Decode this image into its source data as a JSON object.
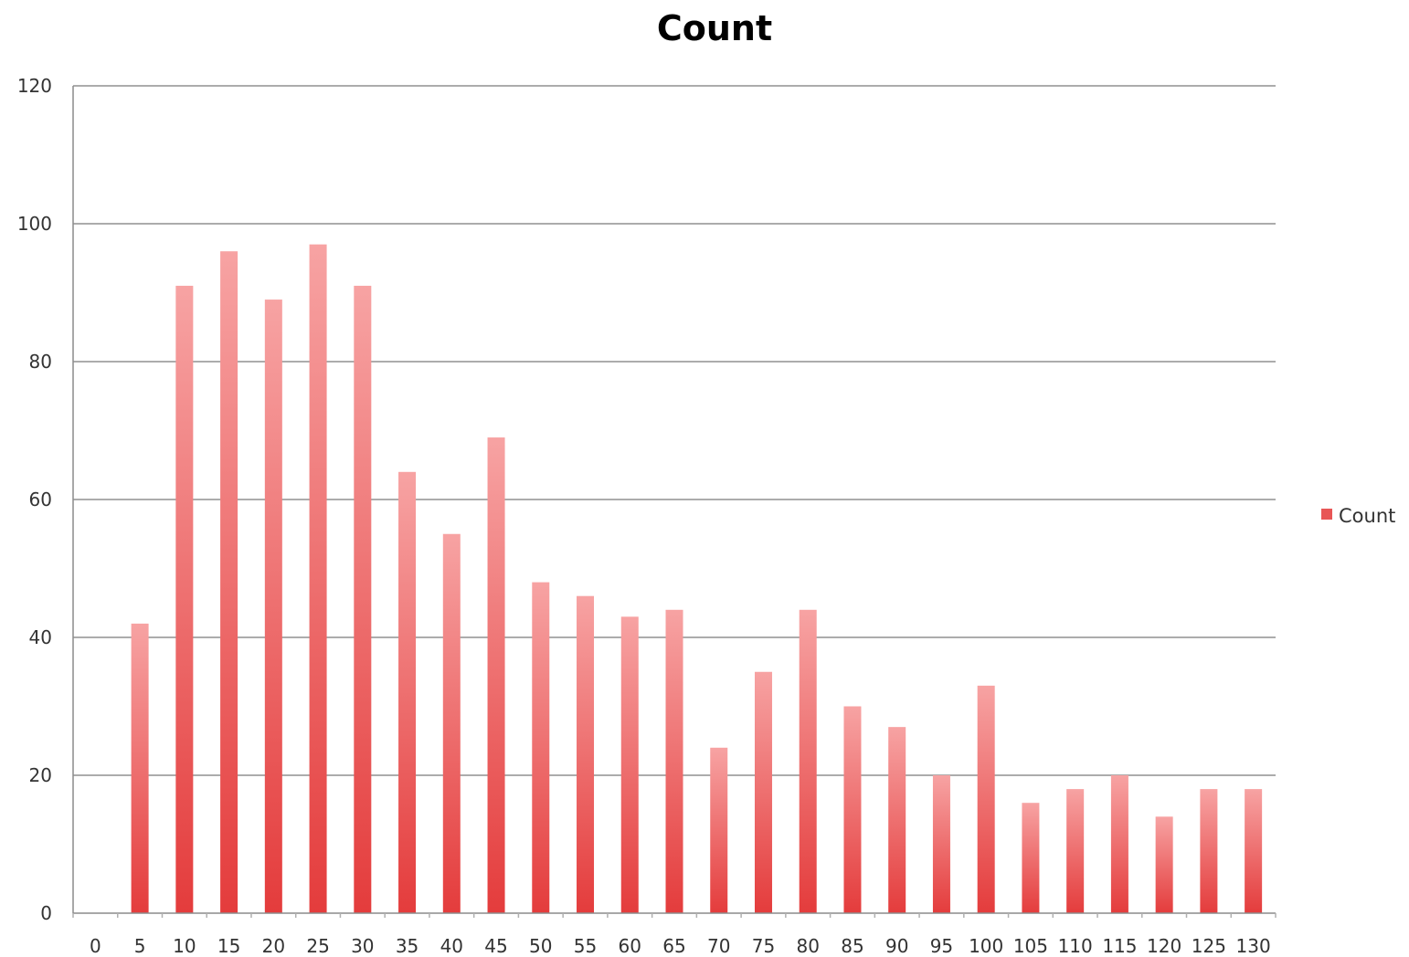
{
  "chart_data": {
    "type": "bar",
    "title": "Count",
    "xlabel": "",
    "ylabel": "",
    "categories": [
      "0",
      "5",
      "10",
      "15",
      "20",
      "25",
      "30",
      "35",
      "40",
      "45",
      "50",
      "55",
      "60",
      "65",
      "70",
      "75",
      "80",
      "85",
      "90",
      "95",
      "100",
      "105",
      "110",
      "115",
      "120",
      "125",
      "130"
    ],
    "series": [
      {
        "name": "Count",
        "values": [
          0,
          42,
          91,
          96,
          89,
          97,
          91,
          64,
          55,
          69,
          48,
          46,
          43,
          44,
          24,
          35,
          44,
          30,
          27,
          20,
          33,
          16,
          18,
          20,
          14,
          18,
          18
        ]
      }
    ],
    "ylim": [
      0,
      120
    ],
    "yticks": [
      "0",
      "20",
      "40",
      "60",
      "80",
      "100",
      "120"
    ],
    "grid": true,
    "legend": "right",
    "colors": {
      "bar_top": "#f7a3a3",
      "bar_bottom": "#e43c3c",
      "legend_swatch": "#e85656"
    }
  }
}
